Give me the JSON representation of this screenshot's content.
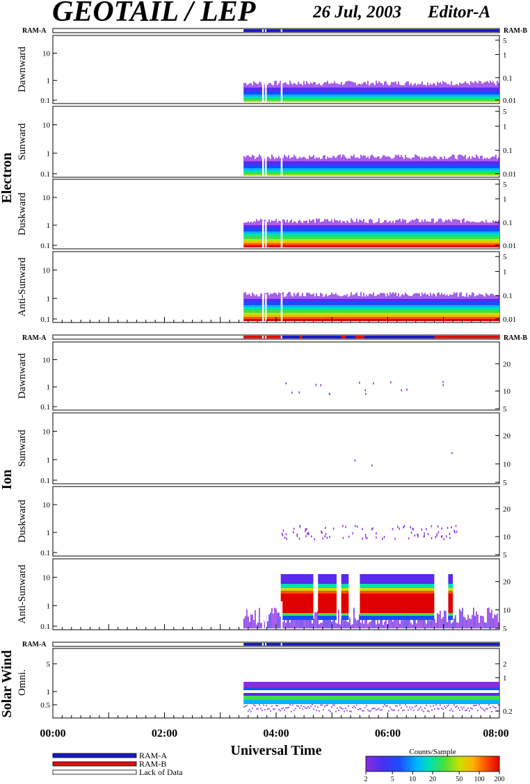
{
  "header": {
    "title": "GEOTAIL / LEP",
    "date": "26 Jul, 2003",
    "editor": "Editor-A"
  },
  "colors": {
    "ram_a": "#1a1acc",
    "ram_b": "#e01010",
    "lack": "#ffffff",
    "spectrum": [
      "#8a2be2",
      "#5a2af0",
      "#1a4cff",
      "#00b4ff",
      "#00e0b0",
      "#40e040",
      "#c8e000",
      "#ffb400",
      "#ff5000",
      "#e00000"
    ]
  },
  "ram_labels": {
    "left": "RAM-A",
    "right": "RAM-B"
  },
  "groups": [
    {
      "id": "electron",
      "label": "Electron",
      "panels": [
        "Dawnward",
        "Sunward",
        "Duskward",
        "Anti-Sunward"
      ]
    },
    {
      "id": "ion",
      "label": "Ion",
      "panels": [
        "Dawnward",
        "Sunward",
        "Duskward",
        "Anti-Sunward"
      ]
    },
    {
      "id": "solarwind",
      "label": "Solar Wind",
      "panels": [
        "Omni."
      ]
    }
  ],
  "axes": {
    "left_log_ticks": [
      "10",
      "1",
      "0.1"
    ],
    "electron_right_ticks": [
      "5",
      "1",
      "0.1",
      "0.01"
    ],
    "ion_right_ticks": [
      "20",
      "10",
      "5"
    ],
    "sw_left_ticks": [
      "5",
      "1",
      "0.5"
    ],
    "sw_right_ticks": [
      "2",
      "1",
      "0.2"
    ],
    "time_ticks": [
      "00:00",
      "02:00",
      "04:00",
      "06:00",
      "08:00"
    ],
    "xlabel": "Universal Time"
  },
  "legend": {
    "ram_a": "RAM-A",
    "ram_b": "RAM-B",
    "lack": "Lack of Data",
    "colorbar_title": "Counts/Sample",
    "colorbar_ticks": [
      "2",
      "5",
      "10",
      "20",
      "50",
      "100",
      "200"
    ]
  },
  "chart_data": {
    "type": "heatmap",
    "title": "GEOTAIL / LEP",
    "xlabel": "Universal Time",
    "xlim": [
      "00:00",
      "08:00"
    ],
    "data_start": "03:25",
    "data_gaps": [
      "03:45",
      "03:48",
      "04:05"
    ],
    "ion_ram_b_intervals": [
      [
        "03:25",
        "04:05"
      ],
      [
        "04:25",
        "04:28"
      ],
      [
        "05:10",
        "05:15"
      ],
      [
        "05:25",
        "05:35"
      ],
      [
        "06:50",
        "08:00"
      ]
    ],
    "ion_anti_sunward_saturated_intervals": [
      [
        "04:05",
        "04:40"
      ],
      [
        "04:45",
        "05:05"
      ],
      [
        "05:10",
        "05:18"
      ],
      [
        "05:30",
        "06:50"
      ],
      [
        "07:05",
        "07:10"
      ]
    ],
    "colorbar": {
      "label": "Counts/Sample",
      "range": [
        2,
        200
      ],
      "scale": "log"
    }
  }
}
